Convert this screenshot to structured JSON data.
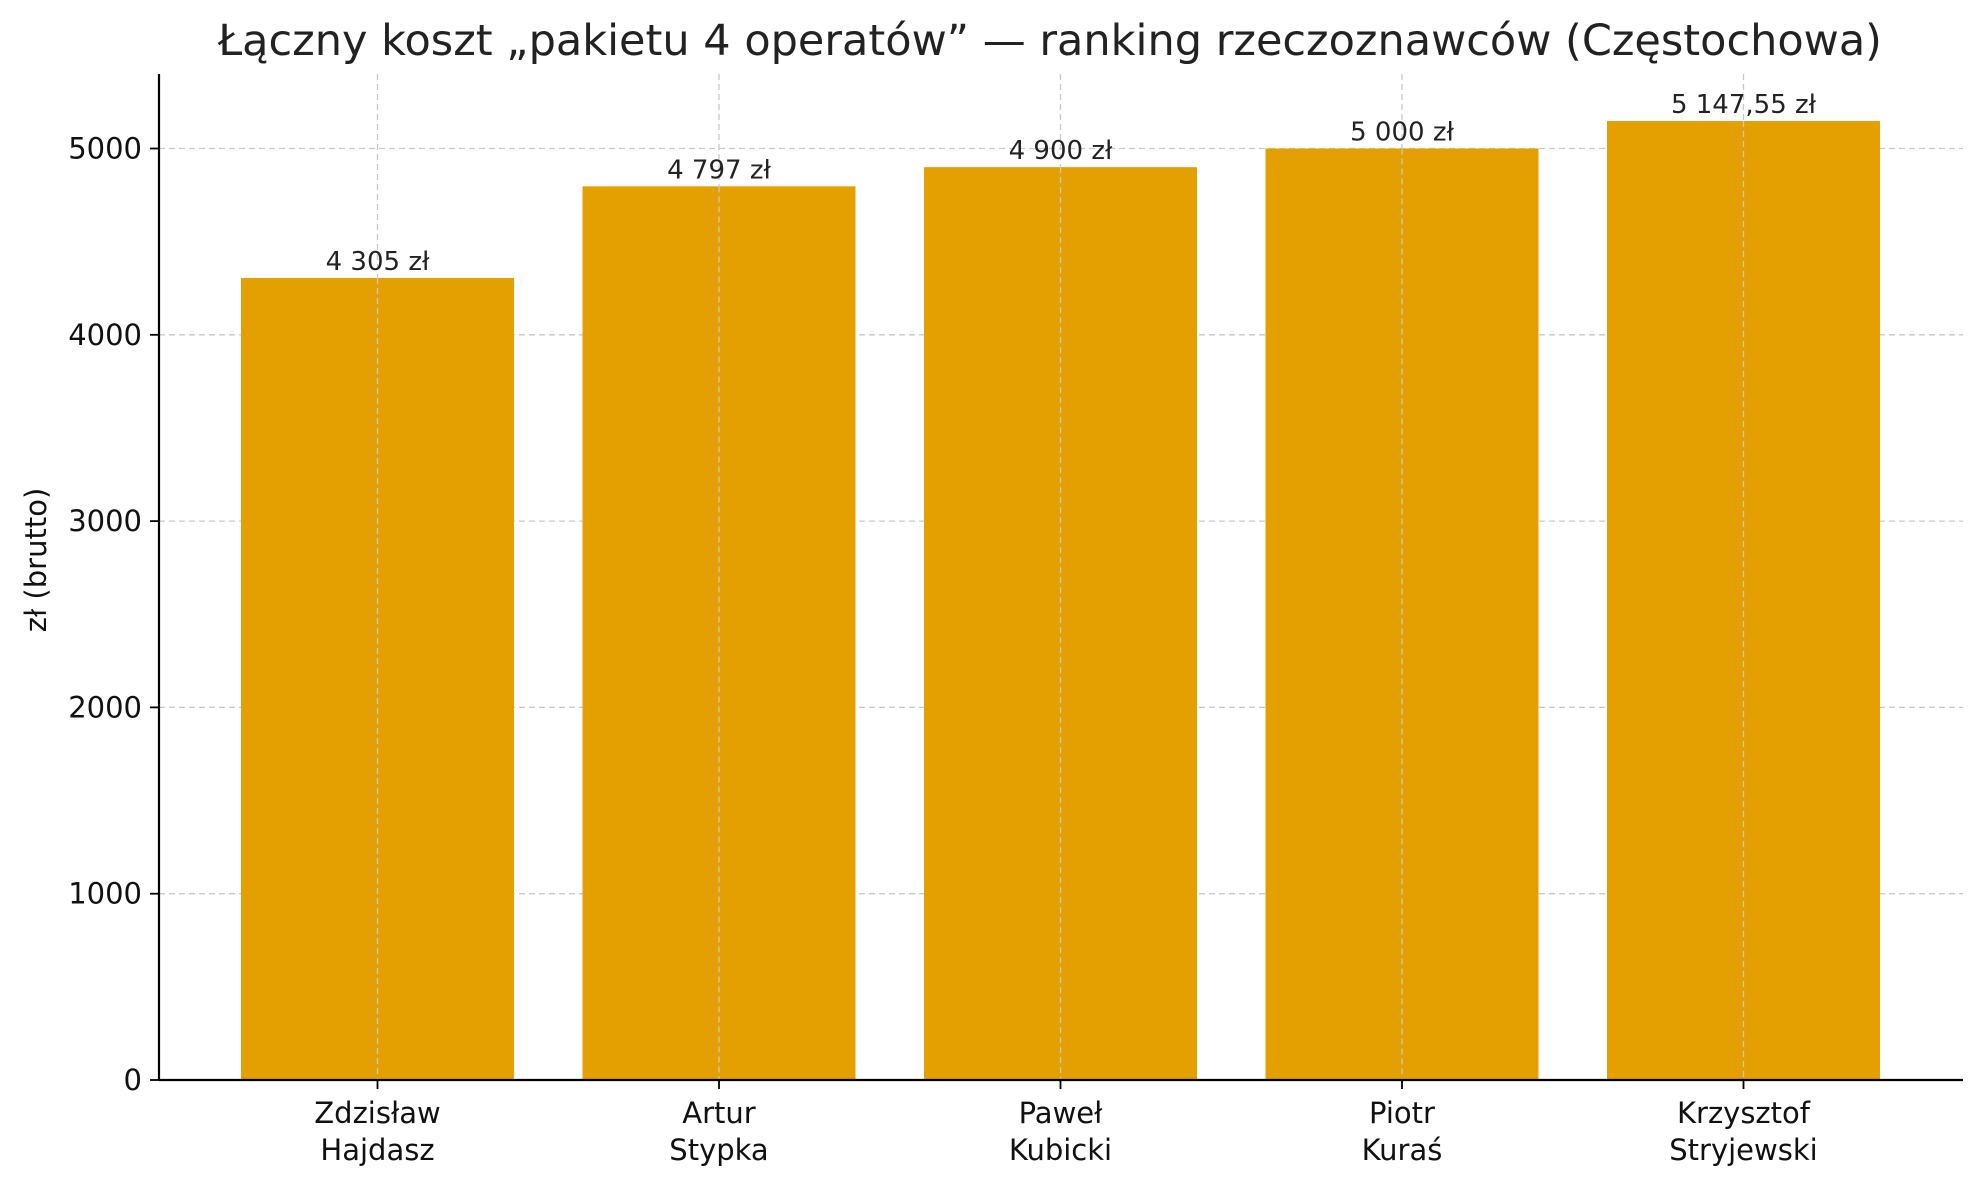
{
  "chart_data": {
    "type": "bar",
    "title": "Łączny koszt „pakietu 4 operatów” — ranking rzeczoznawców (Częstochowa)",
    "xlabel": "",
    "ylabel": "zł (brutto)",
    "categories": [
      [
        "Zdzisław",
        "Hajdasz"
      ],
      [
        "Artur",
        "Stypka"
      ],
      [
        "Paweł",
        "Kubicki"
      ],
      [
        "Piotr",
        "Kuraś"
      ],
      [
        "Krzysztof",
        "Stryjewski"
      ]
    ],
    "values": [
      4305,
      4797,
      4900,
      5000,
      5147.55
    ],
    "data_labels": [
      "4 305 zł",
      "4 797 zł",
      "4 900 zł",
      "5 000 zł",
      "5 147,55 zł"
    ],
    "ylim": [
      0,
      5400
    ],
    "yticks": [
      0,
      1000,
      2000,
      3000,
      4000,
      5000
    ],
    "grid": true,
    "bar_color": "#E3A000"
  }
}
